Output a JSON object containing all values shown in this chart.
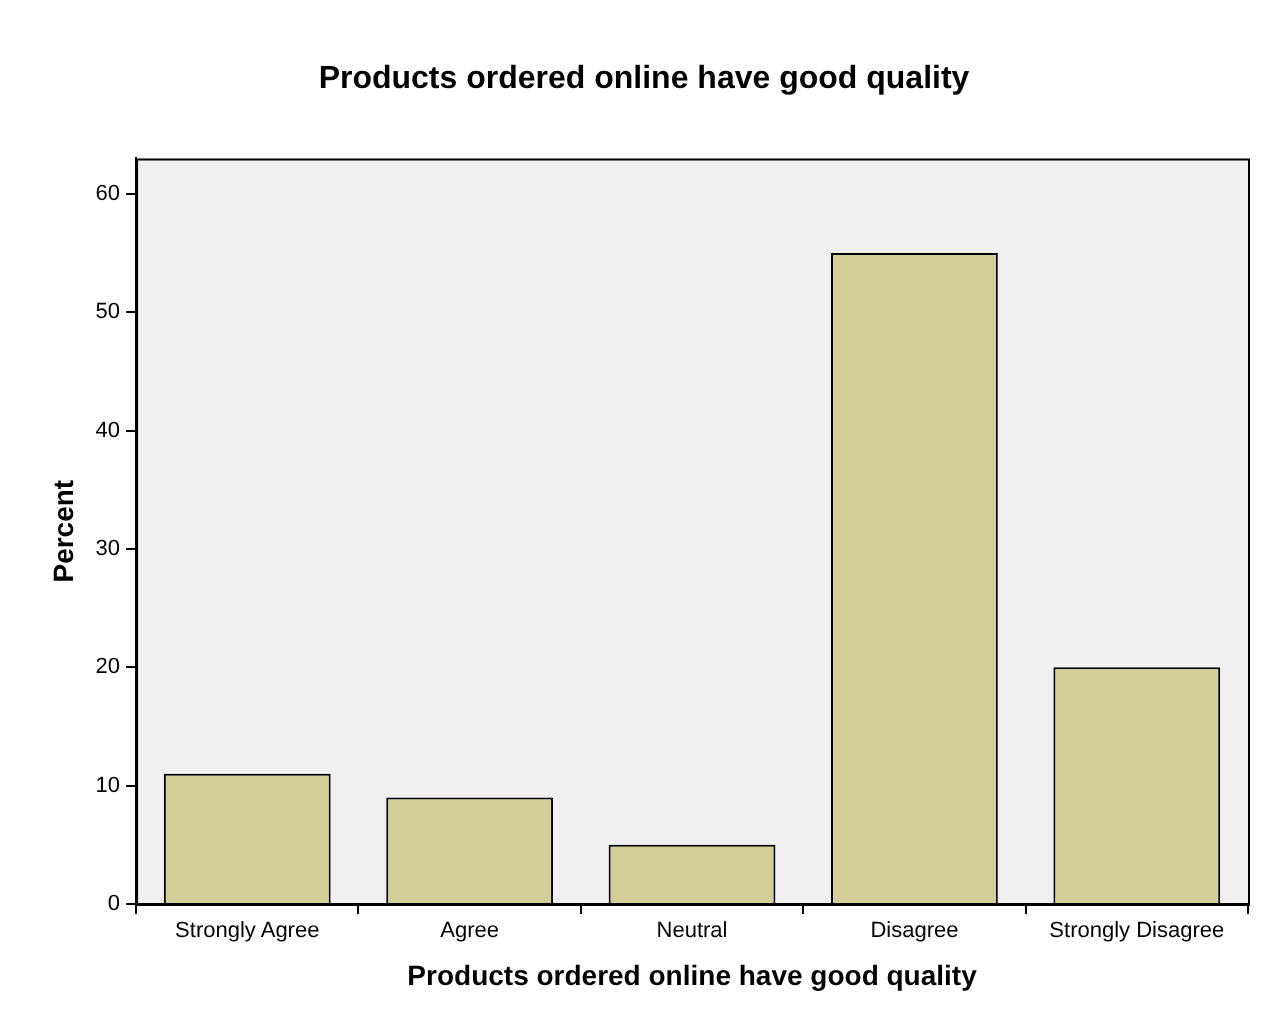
{
  "chart_data": {
    "type": "bar",
    "title": "Products ordered online have good quality",
    "xlabel": "Products ordered online have good quality",
    "ylabel": "Percent",
    "categories": [
      "Strongly Agree",
      "Agree",
      "Neutral",
      "Disagree",
      "Strongly Disagree"
    ],
    "values": [
      11,
      9,
      5,
      55,
      20
    ],
    "color": "#d3ce97",
    "ylim": [
      0,
      63
    ],
    "yticks": [
      0,
      10,
      20,
      30,
      40,
      50,
      60
    ],
    "grid": false,
    "legend": false
  }
}
